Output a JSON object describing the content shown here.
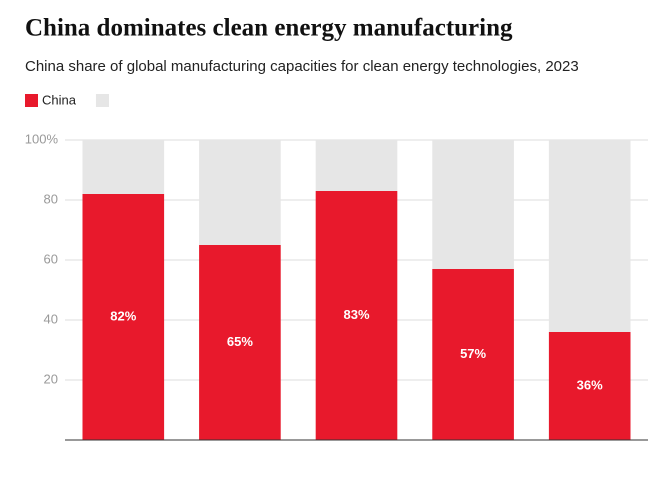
{
  "chart_data": {
    "type": "stacked_bar",
    "title": "China dominates clean energy manufacturing",
    "subtitle": "China share of global manufacturing capacities for clean energy technologies, 2023",
    "categories": [
      null,
      null,
      null,
      null,
      null
    ],
    "series": [
      {
        "name": "China",
        "color": "#e8192c",
        "values": [
          82,
          65,
          83,
          57,
          36
        ],
        "value_labels": [
          "82%",
          "65%",
          "83%",
          "57%",
          "36%"
        ]
      },
      {
        "color": "#e6e6e6",
        "values": [
          18,
          35,
          17,
          43,
          64
        ]
      }
    ],
    "ylim": [
      0,
      100
    ],
    "yticks": [
      {
        "value": 100,
        "label": "100%"
      },
      80,
      60,
      40,
      20
    ],
    "grid": true
  }
}
